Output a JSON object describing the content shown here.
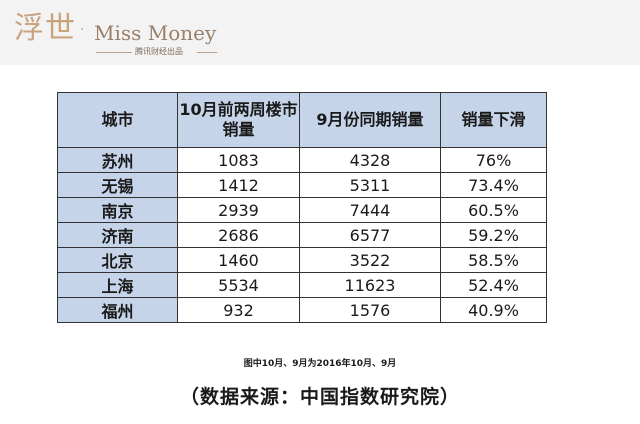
{
  "header": {
    "logo_cn": "浮世",
    "logo_dot": "·",
    "logo_en": "Miss Money",
    "logo_sub": "腾讯财经出品"
  },
  "table": {
    "headers": [
      "城市",
      "10月前两周楼市销量",
      "9月份同期销量",
      "销量下滑"
    ],
    "rows": [
      {
        "city": "苏州",
        "oct": "1083",
        "sep": "4328",
        "decline": "76%"
      },
      {
        "city": "无锡",
        "oct": "1412",
        "sep": "5311",
        "decline": "73.4%"
      },
      {
        "city": "南京",
        "oct": "2939",
        "sep": "7444",
        "decline": "60.5%"
      },
      {
        "city": "济南",
        "oct": "2686",
        "sep": "6577",
        "decline": "59.2%"
      },
      {
        "city": "北京",
        "oct": "1460",
        "sep": "3522",
        "decline": "58.5%"
      },
      {
        "city": "上海",
        "oct": "5534",
        "sep": "11623",
        "decline": "52.4%"
      },
      {
        "city": "福州",
        "oct": "932",
        "sep": "1576",
        "decline": "40.9%"
      }
    ]
  },
  "note": "图中10月、9月为2016年10月、9月",
  "source": "（数据来源：中国指数研究院）",
  "colors": {
    "header_bg": "#f3f3f3",
    "cell_blue": "#c6d4e9",
    "logo_gold": "#c9a27e"
  }
}
